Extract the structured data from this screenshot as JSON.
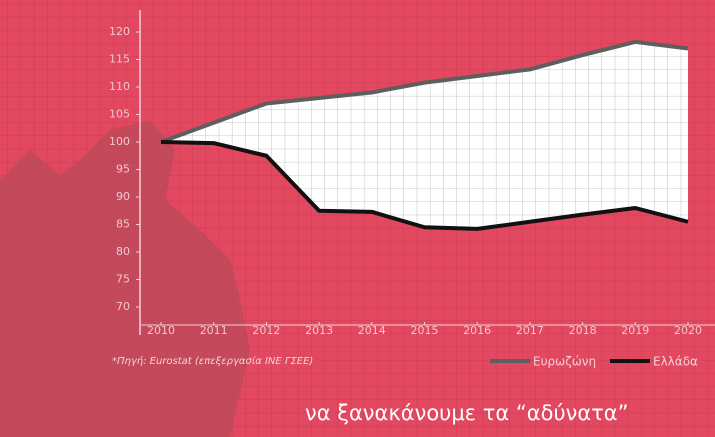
{
  "chart_data": {
    "type": "line",
    "x": [
      2010,
      2011,
      2012,
      2013,
      2014,
      2015,
      2016,
      2017,
      2018,
      2019,
      2020
    ],
    "series": [
      {
        "name": "Ευρωζώνη",
        "color": "#5e5e5e",
        "values": [
          100,
          103.5,
          107,
          108,
          109,
          110.8,
          112,
          113.2,
          115.8,
          118.2,
          117
        ]
      },
      {
        "name": "Ελλάδα",
        "color": "#111111",
        "values": [
          100,
          99.8,
          97.5,
          87.5,
          87.3,
          84.5,
          84.2,
          85.5,
          86.8,
          88,
          85.5
        ]
      }
    ],
    "xlim": [
      2010,
      2020
    ],
    "xticks": [
      2010,
      2011,
      2012,
      2013,
      2014,
      2015,
      2016,
      2017,
      2018,
      2019,
      2020
    ],
    "ylim": [
      70,
      120
    ],
    "yticks": [
      70,
      75,
      80,
      85,
      90,
      95,
      100,
      105,
      110,
      115,
      120
    ],
    "source": "*Πηγή: Eurostat (επεξεργασία ΙΝΕ ΓΣΕΕ)",
    "tagline": "να ξανακάνουμε τα “αδύνατα”"
  }
}
